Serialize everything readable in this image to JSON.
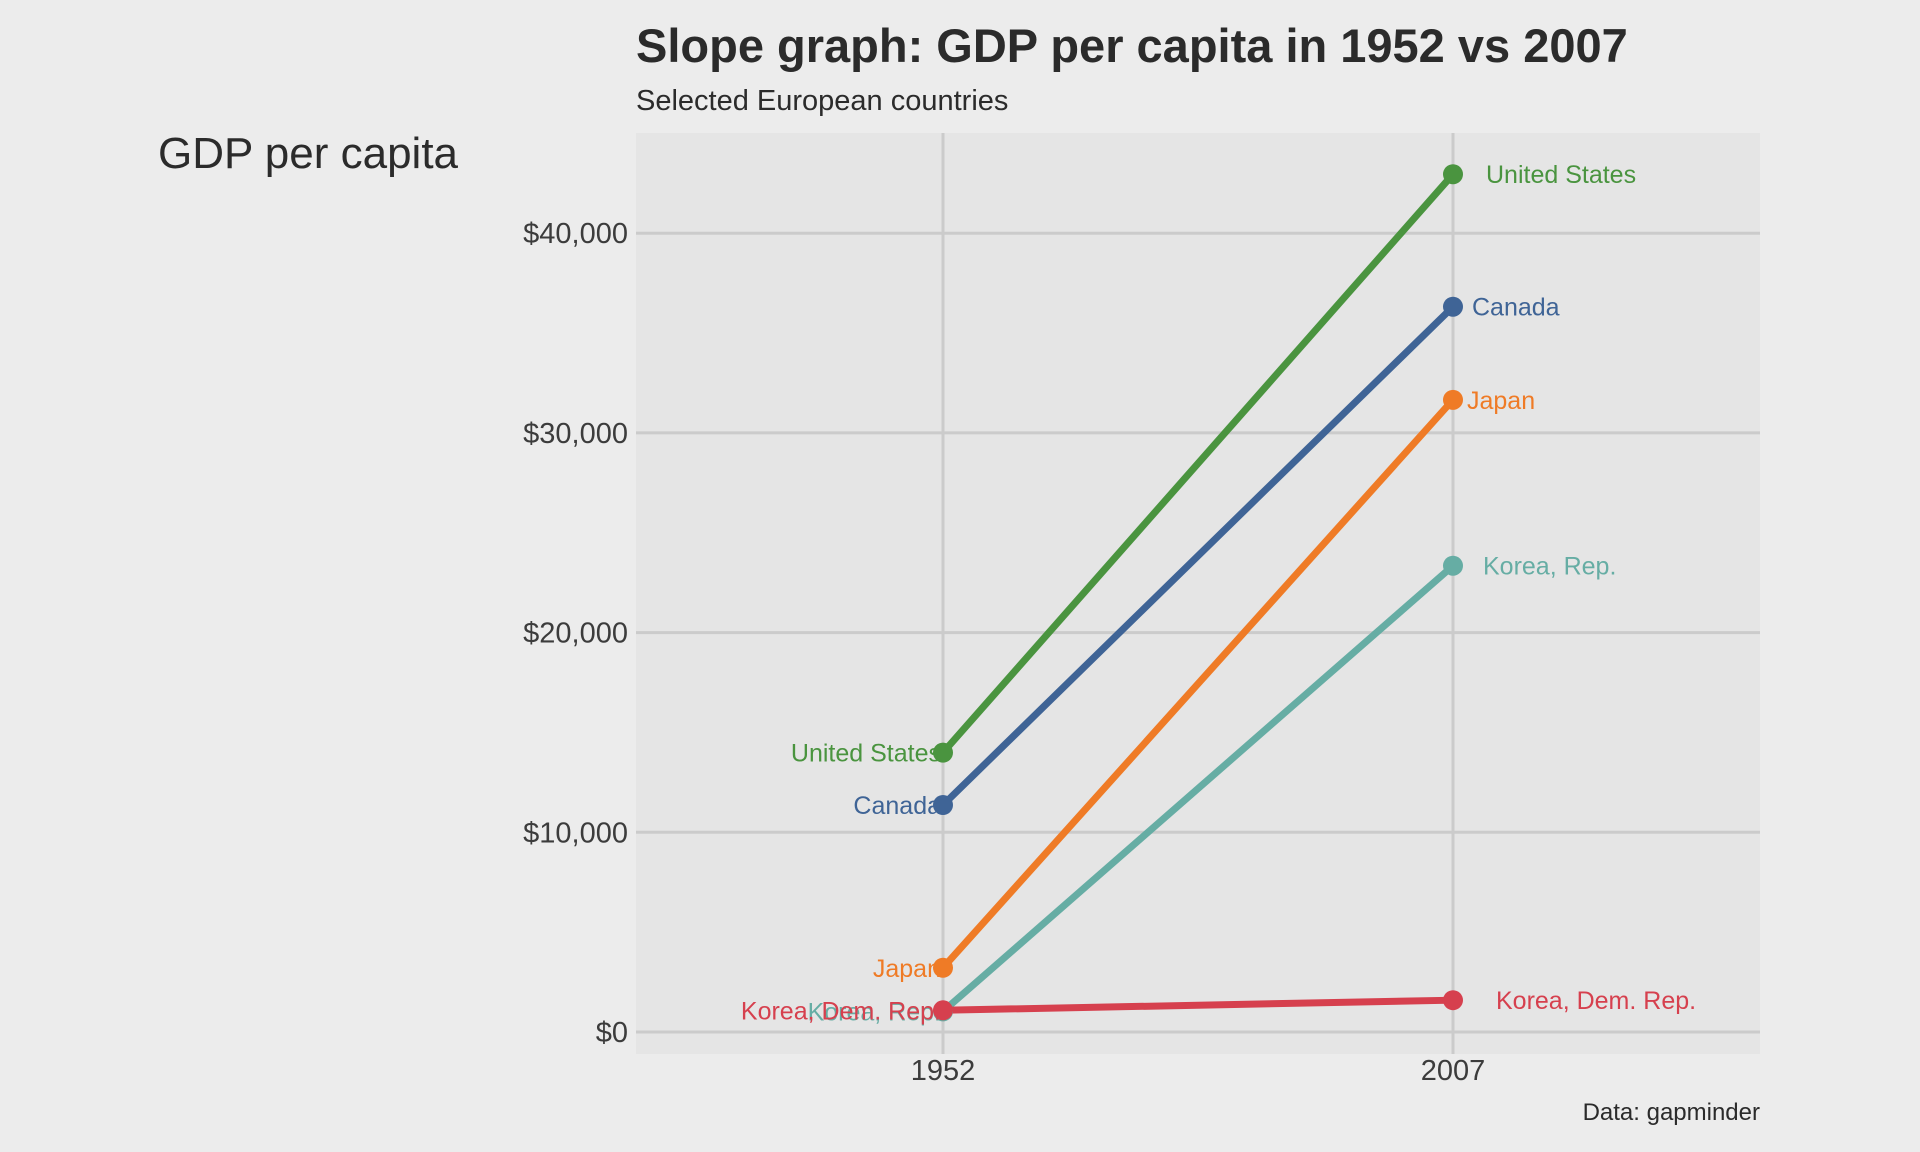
{
  "chart_data": {
    "type": "line",
    "subtype": "slope",
    "title": "Slope graph: GDP per capita in 1952 vs 2007",
    "subtitle": "Selected European countries",
    "ylabel": "GDP per capita",
    "xlabel": "",
    "caption": "Data: gapminder",
    "x": [
      "1952",
      "2007"
    ],
    "ylim": [
      -1000,
      44500
    ],
    "yticks": [
      0,
      10000,
      20000,
      30000,
      40000
    ],
    "ytick_labels": [
      "$0",
      "$10,000",
      "$20,000",
      "$30,000",
      "$40,000"
    ],
    "grid": true,
    "legend": "none (direct labels)",
    "series": [
      {
        "name": "United States",
        "color": "#4a943f",
        "values": [
          13990,
          42952
        ]
      },
      {
        "name": "Canada",
        "color": "#3f6496",
        "values": [
          11367,
          36319
        ]
      },
      {
        "name": "Japan",
        "color": "#ef7b26",
        "values": [
          3217,
          31656
        ]
      },
      {
        "name": "Korea, Rep.",
        "color": "#66ada4",
        "values": [
          1031,
          23348
        ]
      },
      {
        "name": "Korea, Dem. Rep.",
        "color": "#d6404e",
        "values": [
          1088,
          1593
        ]
      }
    ]
  },
  "colors": {
    "background": "#ececec",
    "panel": "#e5e5e5",
    "grid": "#cbcbcb",
    "text": "#2b2b2b"
  }
}
